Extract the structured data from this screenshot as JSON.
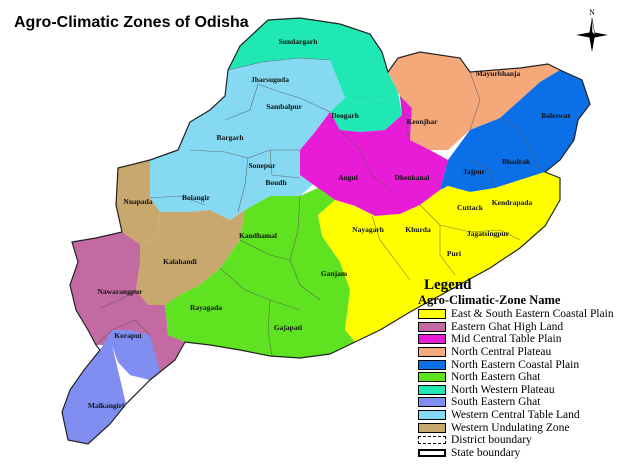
{
  "title": "Agro-Climatic Zones of Odisha",
  "north_label": "N",
  "legend": {
    "title": "Legend",
    "subtitle": "Agro-Climatic-Zone Name",
    "zones": [
      {
        "name": "East & South Eastern Coastal Plain",
        "color": "#ffff00"
      },
      {
        "name": "Eastern Ghat High Land",
        "color": "#c36aa3"
      },
      {
        "name": "Mid Central Table Plain",
        "color": "#e81cd6"
      },
      {
        "name": "North Central Plateau",
        "color": "#f5a87a"
      },
      {
        "name": "North Eastern Coastal Plain",
        "color": "#0b6fe8"
      },
      {
        "name": "North Eastern Ghat",
        "color": "#5fe21f"
      },
      {
        "name": "North Western Plateau",
        "color": "#1fe8b5"
      },
      {
        "name": "South Eastern Ghat",
        "color": "#7f8ef0"
      },
      {
        "name": "Western Central Table Land",
        "color": "#86d9f2"
      },
      {
        "name": "Western Undulating Zone",
        "color": "#c9a86e"
      }
    ],
    "district_boundary": "District boundary",
    "state_boundary": "State boundary"
  },
  "districts": [
    {
      "name": "Sundargarh",
      "zone": "North Western Plateau"
    },
    {
      "name": "Jharsuguda",
      "zone": "North Western Plateau"
    },
    {
      "name": "Sambalpur",
      "zone": "Western Central Table Land"
    },
    {
      "name": "Deogarh",
      "zone": "North Western Plateau"
    },
    {
      "name": "Bargarh",
      "zone": "Western Central Table Land"
    },
    {
      "name": "Sonepur",
      "zone": "Western Central Table Land"
    },
    {
      "name": "Boudh",
      "zone": "Western Central Table Land"
    },
    {
      "name": "Bolangir",
      "zone": "Western Central Table Land"
    },
    {
      "name": "Nuapada",
      "zone": "Western Undulating Zone"
    },
    {
      "name": "Kalahandi",
      "zone": "Western Undulating Zone"
    },
    {
      "name": "Kandhamal",
      "zone": "North Eastern Ghat"
    },
    {
      "name": "Rayagada",
      "zone": "North Eastern Ghat"
    },
    {
      "name": "Gajapati",
      "zone": "North Eastern Ghat"
    },
    {
      "name": "Ganjam",
      "zone": "North Eastern Ghat"
    },
    {
      "name": "Nawarangpur",
      "zone": "Eastern Ghat High Land"
    },
    {
      "name": "Koraput",
      "zone": "Eastern Ghat High Land"
    },
    {
      "name": "Malkangiri",
      "zone": "South Eastern Ghat"
    },
    {
      "name": "Angul",
      "zone": "Mid Central Table Plain"
    },
    {
      "name": "Dhenkanal",
      "zone": "Mid Central Table Plain"
    },
    {
      "name": "Keonjhar",
      "zone": "North Central Plateau"
    },
    {
      "name": "Mayurbhanja",
      "zone": "North Central Plateau"
    },
    {
      "name": "Baleswar",
      "zone": "North Eastern Coastal Plain"
    },
    {
      "name": "Bhadrak",
      "zone": "North Eastern Coastal Plain"
    },
    {
      "name": "Jajpur",
      "zone": "North Eastern Coastal Plain"
    },
    {
      "name": "Cuttack",
      "zone": "East & South Eastern Coastal Plain"
    },
    {
      "name": "Kendrapada",
      "zone": "East & South Eastern Coastal Plain"
    },
    {
      "name": "Jagatsingpur",
      "zone": "East & South Eastern Coastal Plain"
    },
    {
      "name": "Khurda",
      "zone": "East & South Eastern Coastal Plain"
    },
    {
      "name": "Nayagarh",
      "zone": "East & South Eastern Coastal Plain"
    },
    {
      "name": "Puri",
      "zone": "East & South Eastern Coastal Plain"
    }
  ]
}
